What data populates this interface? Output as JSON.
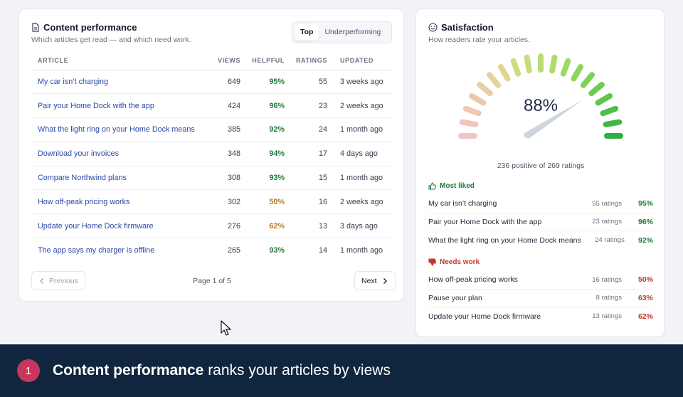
{
  "perf": {
    "title": "Content performance",
    "subtitle": "Which articles get read — and which need work.",
    "tabs": [
      "Top",
      "Underperforming"
    ],
    "columns": [
      "ARTICLE",
      "VIEWS",
      "HELPFUL",
      "RATINGS",
      "UPDATED"
    ],
    "rows": [
      {
        "title": "My car isn’t charging",
        "views": "649",
        "helpful": "95%",
        "ratings": "55",
        "updated": "3 weeks ago",
        "status": "good"
      },
      {
        "title": "Pair your Home Dock with the app",
        "views": "424",
        "helpful": "96%",
        "ratings": "23",
        "updated": "2 weeks ago",
        "status": "good"
      },
      {
        "title": "What the light ring on your Home Dock means",
        "views": "385",
        "helpful": "92%",
        "ratings": "24",
        "updated": "1 month ago",
        "status": "good"
      },
      {
        "title": "Download your invoices",
        "views": "348",
        "helpful": "94%",
        "ratings": "17",
        "updated": "4 days ago",
        "status": "good"
      },
      {
        "title": "Compare Northwind plans",
        "views": "308",
        "helpful": "93%",
        "ratings": "15",
        "updated": "1 month ago",
        "status": "good"
      },
      {
        "title": "How off-peak pricing works",
        "views": "302",
        "helpful": "50%",
        "ratings": "16",
        "updated": "2 weeks ago",
        "status": "warn"
      },
      {
        "title": "Update your Home Dock firmware",
        "views": "276",
        "helpful": "62%",
        "ratings": "13",
        "updated": "3 days ago",
        "status": "warn"
      },
      {
        "title": "The app says my charger is offline",
        "views": "265",
        "helpful": "93%",
        "ratings": "14",
        "updated": "1 month ago",
        "status": "good"
      }
    ],
    "prev_label": "Previous",
    "next_label": "Next",
    "page_label": "Page 1 of 5"
  },
  "sat": {
    "title": "Satisfaction",
    "subtitle": "How readers rate your articles.",
    "percent": "88%",
    "gauge_value": 0.88,
    "count_label": "236 positive of 269 ratings",
    "liked_title": "Most liked",
    "liked": [
      {
        "title": "My car isn’t charging",
        "ratings": "55 ratings",
        "pct": "95%"
      },
      {
        "title": "Pair your Home Dock with the app",
        "ratings": "23 ratings",
        "pct": "96%"
      },
      {
        "title": "What the light ring on your Home Dock means",
        "ratings": "24 ratings",
        "pct": "92%"
      }
    ],
    "work_title": "Needs work",
    "work": [
      {
        "title": "How off-peak pricing works",
        "ratings": "16 ratings",
        "pct": "50%"
      },
      {
        "title": "Pause your plan",
        "ratings": "8 ratings",
        "pct": "63%"
      },
      {
        "title": "Update your Home Dock firmware",
        "ratings": "13 ratings",
        "pct": "62%"
      }
    ]
  },
  "caption": {
    "step": "1",
    "bold": "Content performance",
    "rest": " ranks your articles by views"
  },
  "colors": {
    "good": "#1f7a3a",
    "warn": "#b7791f",
    "bad": "#c0392b",
    "link": "#2b4aa6",
    "caption_bg": "#10263e",
    "step_bg": "#c9365b"
  }
}
